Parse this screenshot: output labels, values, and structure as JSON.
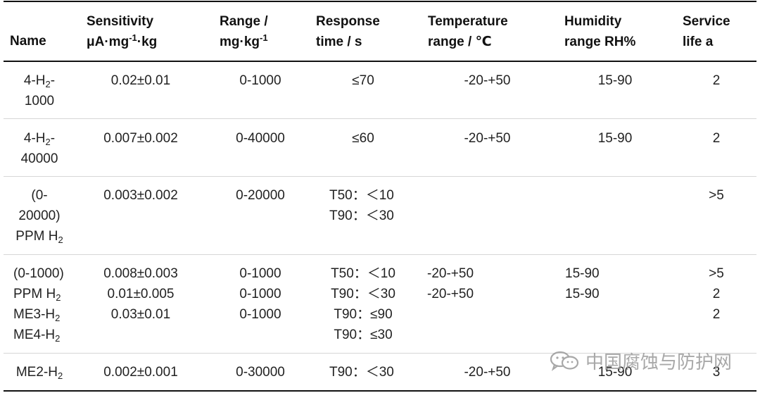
{
  "table": {
    "headers": {
      "name": "Name",
      "sensitivity_l1": "Sensitivity",
      "sensitivity_l2_a": "μA·mg",
      "sensitivity_l2_sup": "-1",
      "sensitivity_l2_b": "·kg",
      "range_l1": "Range /",
      "range_l2_a": "mg·kg",
      "range_l2_sup": "-1",
      "response_l1": "Response",
      "response_l2": "time / s",
      "temperature_l1": "Temperature",
      "temperature_l2": "range / ℃",
      "humidity_l1": "Humidity",
      "humidity_l2": "range RH%",
      "service_l1": "Service",
      "service_l2": "life a"
    },
    "rows": [
      {
        "name_l1": "4-H",
        "name_l1_sub": "2",
        "name_l1_tail": "-",
        "name_l2": "1000",
        "sensitivity": "0.02±0.01",
        "range": "0-1000",
        "response": "≤70",
        "temperature": "-20-+50",
        "humidity": "15-90",
        "service": "2"
      },
      {
        "name_l1": "4-H",
        "name_l1_sub": "2",
        "name_l1_tail": "-",
        "name_l2": "40000",
        "sensitivity": "0.007±0.002",
        "range": "0-40000",
        "response": "≤60",
        "temperature": "-20-+50",
        "humidity": "15-90",
        "service": "2"
      },
      {
        "name_l1": "(0-",
        "name_l2": "20000)",
        "name_l3": "PPM H",
        "name_l3_sub": "2",
        "sensitivity": "0.003±0.002",
        "range": "0-20000",
        "response_l1": "T50：＜10",
        "response_l2": "T90：＜30",
        "service": ">5"
      },
      {
        "name_l1": "(0-1000)",
        "name_l2": "PPM H",
        "name_l2_sub": "2",
        "name_l3": "ME3-H",
        "name_l3_sub": "2",
        "name_l4": "ME4-H",
        "name_l4_sub": "2",
        "sensitivity_l1": "0.008±0.003",
        "sensitivity_l2": "0.01±0.005",
        "sensitivity_l3": "0.03±0.01",
        "range_l1": "0-1000",
        "range_l2": "0-1000",
        "range_l3": "0-1000",
        "response_l1": "T50：＜10",
        "response_l2": "T90：＜30",
        "response_l3": "T90：≤90",
        "response_l4": "T90：≤30",
        "temperature_l1": "-20-+50",
        "temperature_l2": "-20-+50",
        "humidity_l1": "15-90",
        "humidity_l2": "15-90",
        "service_l1": ">5",
        "service_l2": "2",
        "service_l3": "2"
      },
      {
        "name_l1": "ME2-H",
        "name_l1_sub": "2",
        "sensitivity": "0.002±0.001",
        "range": "0-30000",
        "response": "T90：＜30",
        "temperature": "-20-+50",
        "humidity": "15-90",
        "service": "3"
      }
    ]
  },
  "watermark": {
    "text": "中国腐蚀与防护网",
    "icon": "wechat-icon"
  }
}
